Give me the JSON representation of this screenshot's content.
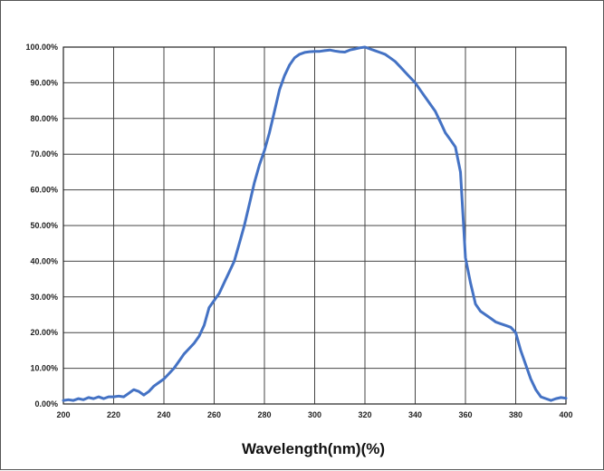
{
  "chart_data": {
    "type": "line",
    "title": "",
    "xlabel": "Wavelength(nm)(%)",
    "ylabel": "",
    "xlim": [
      200,
      400
    ],
    "ylim": [
      0,
      100
    ],
    "grid": true,
    "line_color": "#4472c4",
    "x_ticks": [
      "200",
      "220",
      "240",
      "260",
      "280",
      "300",
      "320",
      "340",
      "360",
      "380",
      "400"
    ],
    "y_ticks": [
      "0.00%",
      "10.00%",
      "20.00%",
      "30.00%",
      "40.00%",
      "50.00%",
      "60.00%",
      "70.00%",
      "80.00%",
      "90.00%",
      "100.00%"
    ],
    "series": [
      {
        "x": [
          200,
          202,
          204,
          206,
          208,
          210,
          212,
          214,
          216,
          218,
          220,
          222,
          224,
          226,
          228,
          230,
          232,
          234,
          236,
          238,
          240,
          242,
          244,
          246,
          248,
          250,
          252,
          254,
          256,
          258,
          260,
          262,
          264,
          266,
          268,
          270,
          272,
          274,
          276,
          278,
          280,
          282,
          284,
          286,
          288,
          290,
          292,
          294,
          296,
          298,
          300,
          302,
          304,
          306,
          308,
          310,
          312,
          314,
          316,
          318,
          320,
          322,
          324,
          326,
          328,
          330,
          332,
          334,
          336,
          338,
          340,
          342,
          344,
          346,
          348,
          350,
          352,
          354,
          356,
          358,
          360,
          362,
          364,
          366,
          368,
          370,
          372,
          374,
          376,
          378,
          380,
          382,
          384,
          386,
          388,
          390,
          392,
          394,
          396,
          398,
          400
        ],
        "y": [
          1.0,
          1.2,
          1.0,
          1.5,
          1.2,
          1.8,
          1.5,
          2.0,
          1.5,
          2.0,
          2.0,
          2.2,
          2.0,
          3.0,
          4.0,
          3.5,
          2.5,
          3.5,
          5.0,
          6.0,
          7.0,
          8.5,
          10.0,
          12.0,
          14.0,
          15.5,
          17.0,
          19.0,
          22.0,
          27.0,
          29.0,
          31.0,
          34.0,
          37.0,
          40.0,
          45.0,
          50.0,
          56.0,
          62.0,
          67.0,
          71.0,
          76.0,
          82.0,
          88.0,
          92.0,
          95.0,
          97.0,
          98.0,
          98.5,
          98.7,
          98.8,
          98.8,
          99.0,
          99.2,
          98.9,
          98.7,
          98.6,
          99.2,
          99.5,
          99.8,
          100.0,
          99.5,
          99.0,
          98.5,
          98.0,
          97.0,
          96.0,
          94.5,
          93.0,
          91.5,
          90.0,
          88.0,
          86.0,
          84.0,
          82.0,
          79.0,
          76.0,
          74.0,
          72.0,
          65.0,
          41.0,
          34.0,
          28.0,
          26.0,
          25.0,
          24.0,
          23.0,
          22.5,
          22.0,
          21.5,
          20.0,
          15.0,
          11.0,
          7.0,
          4.0,
          2.0,
          1.5,
          1.0,
          1.5,
          1.8,
          1.6
        ]
      }
    ]
  }
}
